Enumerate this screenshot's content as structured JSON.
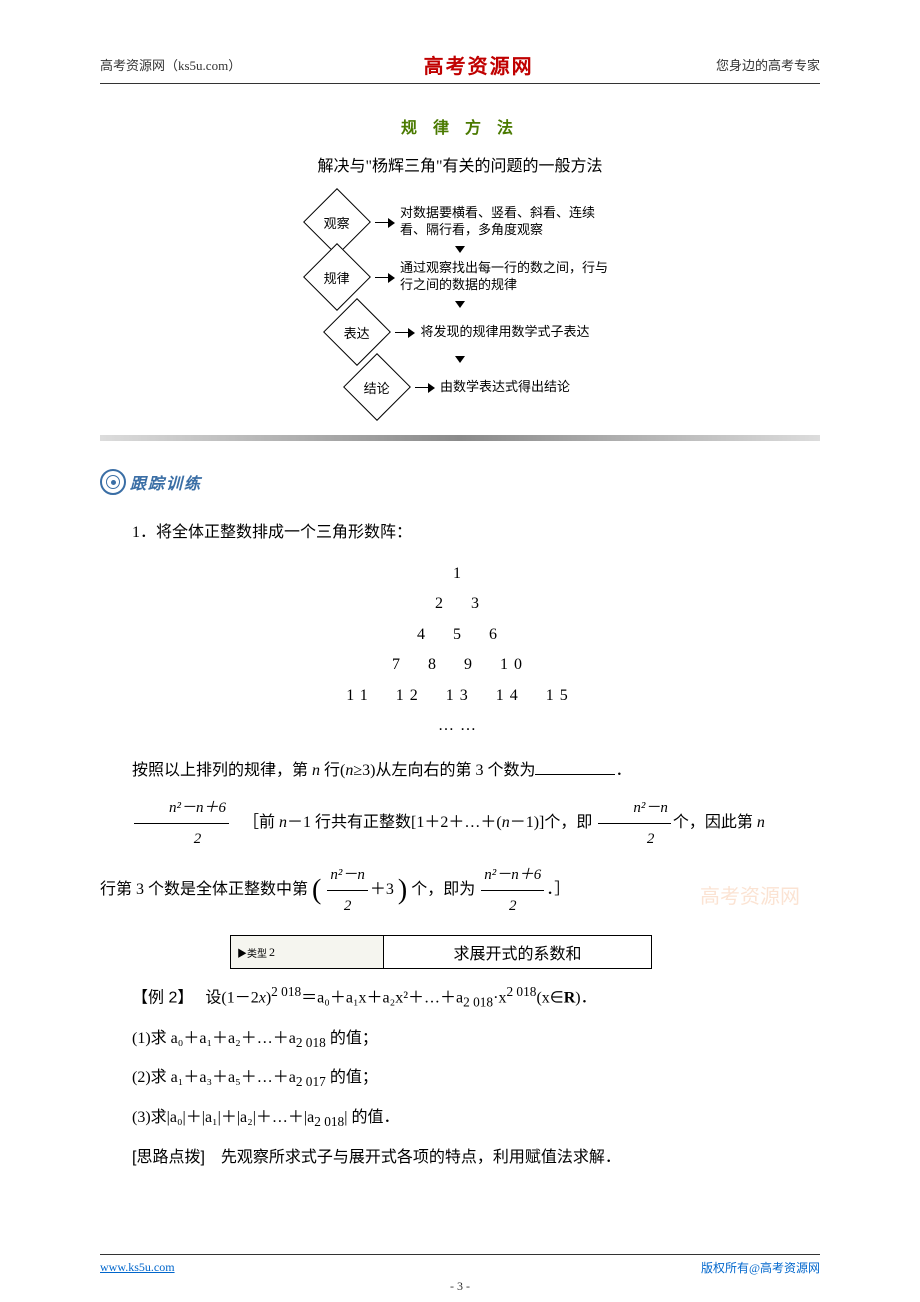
{
  "header": {
    "left": "高考资源网（ks5u.com）",
    "mid": "高考资源网",
    "right": "您身边的高考专家"
  },
  "method": {
    "label": "规 律 方 法",
    "title": "解决与\"杨辉三角\"有关的问题的一般方法"
  },
  "flow": {
    "nodes": [
      "观察",
      "规律",
      "表达",
      "结论"
    ],
    "desc": [
      "对数据要横看、竖看、斜看、连续看、隔行看，多角度观察",
      "通过观察找出每一行的数之间，行与行之间的数据的规律",
      "将发现的规律用数学式子表达",
      "由数学表达式得出结论"
    ],
    "node_border": "#000000",
    "arrow_color": "#000000"
  },
  "track": {
    "label": "跟踪训练"
  },
  "q1": {
    "intro": "1．将全体正整数排成一个三角形数阵：",
    "rows": [
      "1",
      "2　3",
      "4　5　6",
      "7　8　9　10",
      "11　12　13　14　15",
      "……"
    ],
    "line2_a": "按照以上排列的规律，第 ",
    "line2_b": " 行(",
    "line2_c": "≥3)从左向右的第 3 个数为",
    "line2_end": "．",
    "ans_num": "n²－n＋6",
    "ans_den": "2",
    "expl_a": "［前 ",
    "expl_b": "－1 行共有正整数[1＋2＋…＋(",
    "expl_c": "－1)]个，即",
    "expl_frac1_num": "n²－n",
    "expl_frac1_den": "2",
    "expl_d": "个，因此第 ",
    "expl_e": "行第 3 个数是全体正整数中第",
    "expl_frac2_num": "n²－n",
    "expl_frac2_den": "2",
    "expl_plus3": "＋3",
    "expl_f": "个，即为",
    "expl_frac3_num": "n²－n＋6",
    "expl_frac3_den": "2",
    "expl_g": "．］"
  },
  "typebox": {
    "type_small": "▶类型",
    "type_num": "2",
    "title": "求展开式的系数和"
  },
  "ex2": {
    "label": "【例 2】",
    "stem_a": "设(1－2",
    "stem_b": ")",
    "exp1": "2 018",
    "stem_c": "＝a₀＋a₁x＋a₂x²＋…＋a",
    "sub2018": "2 018",
    "stem_d": "·x",
    "exp2": "2 018",
    "stem_e": "(x∈",
    "setR": "R",
    "stem_f": ")．",
    "p1": "(1)求 a₀＋a₁＋a₂＋…＋a",
    "p1_sub": "2 018",
    "p1_end": " 的值；",
    "p2": "(2)求 a₁＋a₃＋a₅＋…＋a",
    "p2_sub": "2 017",
    "p2_end": " 的值；",
    "p3": "(3)求|a₀|＋|a₁|＋|a₂|＋…＋|a",
    "p3_sub": "2 018",
    "p3_end": "| 的值．",
    "hint_label": "[思路点拨]",
    "hint": "先观察所求式子与展开式各项的特点，利用赋值法求解．"
  },
  "footer": {
    "left": "www.ks5u.com",
    "mid": "- 3 -",
    "right": "版权所有@高考资源网"
  },
  "colors": {
    "brand_red": "#c00000",
    "method_green": "#4a7a00",
    "track_blue": "#3a6ea5",
    "link_blue": "#0066cc",
    "watermark": "#f4b183"
  }
}
